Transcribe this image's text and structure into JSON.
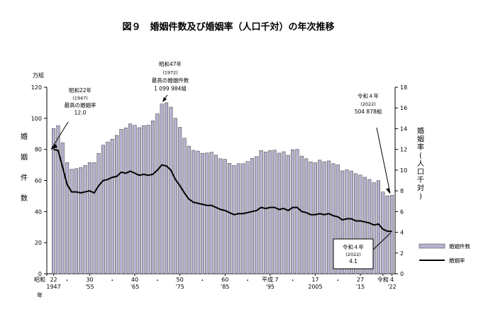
{
  "chart_data": {
    "type": "bar",
    "title": "図９　婚姻件数及び婚姻率（人口千対）の年次推移",
    "left_axis": {
      "unit": "万組",
      "label_chars": [
        "婚",
        "姻",
        "件",
        "数"
      ],
      "ylim": [
        0,
        120
      ],
      "ticks": [
        0,
        20,
        40,
        60,
        80,
        100,
        120
      ]
    },
    "right_axis": {
      "label_chars": [
        "婚",
        "姻",
        "率",
        "(",
        "人",
        "口",
        "千",
        "対",
        ")"
      ],
      "ylim": [
        0,
        18
      ],
      "ticks": [
        0,
        2,
        4,
        6,
        8,
        10,
        12,
        14,
        16,
        18
      ]
    },
    "x_axis": {
      "labels": [
        {
          "year": 1945.5,
          "top": "昭和",
          "bottom": "年"
        },
        {
          "year": 1947,
          "top": "22",
          "bottom": "1947"
        },
        {
          "year": 1950,
          "top": "・",
          "bottom": ""
        },
        {
          "year": 1955,
          "top": "30",
          "bottom": "'55"
        },
        {
          "year": 1960,
          "top": "・",
          "bottom": ""
        },
        {
          "year": 1965,
          "top": "40",
          "bottom": "'65"
        },
        {
          "year": 1970,
          "top": "・",
          "bottom": ""
        },
        {
          "year": 1975,
          "top": "50",
          "bottom": "'75"
        },
        {
          "year": 1980,
          "top": "・",
          "bottom": ""
        },
        {
          "year": 1985,
          "top": "60",
          "bottom": "'85"
        },
        {
          "year": 1990,
          "top": "・",
          "bottom": ""
        },
        {
          "year": 1995,
          "top": "平成 7",
          "bottom": "'95"
        },
        {
          "year": 2000,
          "top": "・",
          "bottom": ""
        },
        {
          "year": 2005,
          "top": "17",
          "bottom": "2005"
        },
        {
          "year": 2010,
          "top": "・",
          "bottom": ""
        },
        {
          "year": 2015,
          "top": "27",
          "bottom": "'15"
        },
        {
          "year": 2020,
          "top": "令和",
          "bottom": ""
        },
        {
          "year": 2022,
          "top": "4",
          "bottom": "'22"
        }
      ]
    },
    "years": [
      1947,
      1948,
      1949,
      1950,
      1951,
      1952,
      1953,
      1954,
      1955,
      1956,
      1957,
      1958,
      1959,
      1960,
      1961,
      1962,
      1963,
      1964,
      1965,
      1966,
      1967,
      1968,
      1969,
      1970,
      1971,
      1972,
      1973,
      1974,
      1975,
      1976,
      1977,
      1978,
      1979,
      1980,
      1981,
      1982,
      1983,
      1984,
      1985,
      1986,
      1987,
      1988,
      1989,
      1990,
      1991,
      1992,
      1993,
      1994,
      1995,
      1996,
      1997,
      1998,
      1999,
      2000,
      2001,
      2002,
      2003,
      2004,
      2005,
      2006,
      2007,
      2008,
      2009,
      2010,
      2011,
      2012,
      2013,
      2014,
      2015,
      2016,
      2017,
      2018,
      2019,
      2020,
      2021,
      2022
    ],
    "series": [
      {
        "name": "婚姻件数",
        "kind": "bar",
        "axis": "left",
        "color": "#b8b2cf",
        "values": [
          93.4,
          95.3,
          84.2,
          71.5,
          67.2,
          67.6,
          68.3,
          69.7,
          71.5,
          71.6,
          77.4,
          82.7,
          84.8,
          86.6,
          89.0,
          92.9,
          93.8,
          96.4,
          95.5,
          94.0,
          95.3,
          95.6,
          98.4,
          102.9,
          109.2,
          110.0,
          107.2,
          100.0,
          94.2,
          87.2,
          82.1,
          79.4,
          78.9,
          77.5,
          77.7,
          78.2,
          76.3,
          74.0,
          73.6,
          71.0,
          69.6,
          70.8,
          70.8,
          72.2,
          74.2,
          75.4,
          79.3,
          78.3,
          79.2,
          79.5,
          77.6,
          78.5,
          76.2,
          79.8,
          80.0,
          75.7,
          74.0,
          72.0,
          71.4,
          73.1,
          72.0,
          72.6,
          70.8,
          70.0,
          66.2,
          66.9,
          66.1,
          64.4,
          63.5,
          62.1,
          60.7,
          58.6,
          59.9,
          52.6,
          50.1,
          50.5
        ]
      },
      {
        "name": "婚姻率",
        "kind": "line",
        "axis": "right",
        "color": "#000000",
        "values": [
          12.0,
          11.9,
          10.3,
          8.6,
          7.9,
          7.9,
          7.8,
          7.9,
          8.0,
          7.8,
          8.5,
          9.0,
          9.1,
          9.3,
          9.4,
          9.8,
          9.7,
          9.9,
          9.7,
          9.5,
          9.6,
          9.5,
          9.6,
          10.0,
          10.5,
          10.4,
          10.0,
          9.1,
          8.5,
          7.8,
          7.2,
          6.9,
          6.8,
          6.7,
          6.6,
          6.6,
          6.4,
          6.2,
          6.1,
          5.9,
          5.7,
          5.8,
          5.8,
          5.9,
          6.0,
          6.1,
          6.4,
          6.3,
          6.4,
          6.4,
          6.2,
          6.3,
          6.1,
          6.4,
          6.4,
          6.0,
          5.9,
          5.7,
          5.7,
          5.8,
          5.7,
          5.8,
          5.6,
          5.5,
          5.2,
          5.3,
          5.3,
          5.1,
          5.1,
          5.0,
          4.9,
          4.7,
          4.8,
          4.3,
          4.1,
          4.1
        ]
      }
    ],
    "annotations": [
      {
        "lines": [
          "昭和22年",
          "(1947)",
          "最高の婚姻率",
          "12.0"
        ]
      },
      {
        "lines": [
          "昭和47年",
          "(1972)",
          "最高の婚姻件数",
          "1 099 984組"
        ]
      },
      {
        "lines": [
          "令和４年",
          "(2022)",
          "504 878組"
        ]
      },
      {
        "lines": [
          "令和４年",
          "(2022)",
          "4.1"
        ]
      }
    ],
    "legend": {
      "position": "right",
      "items": [
        "婚姻件数",
        "婚姻率"
      ]
    }
  }
}
